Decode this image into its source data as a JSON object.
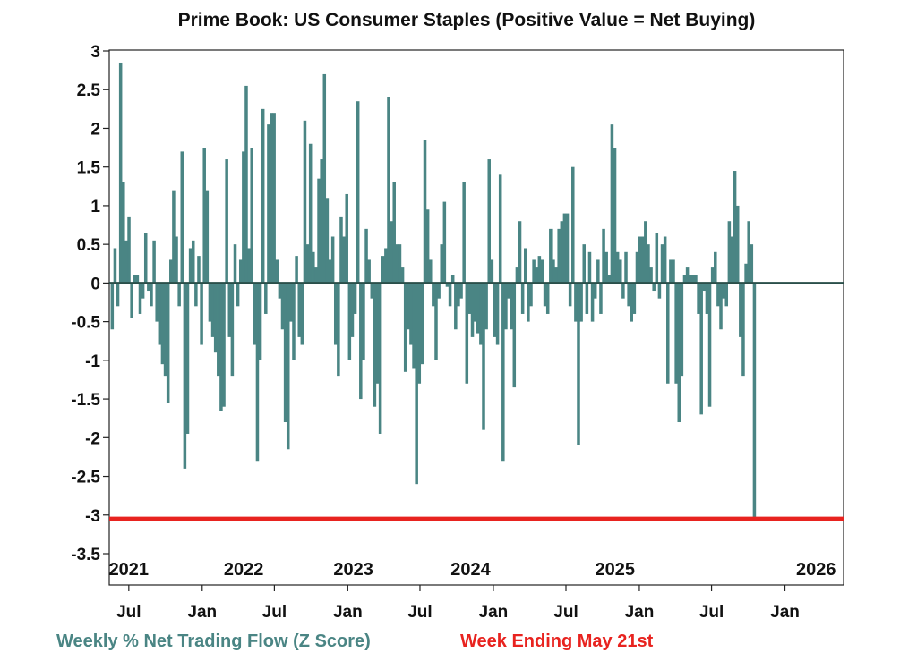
{
  "chart_data": {
    "type": "bar",
    "title": "Prime Book: US Consumer Staples (Positive Value = Net Buying)",
    "ylim": [
      -3.5,
      3
    ],
    "yticks": [
      "3",
      "2.5",
      "2",
      "1.5",
      "1",
      "0.5",
      "0",
      "-0.5",
      "-1",
      "-1.5",
      "-2",
      "-2.5",
      "-3",
      "-3.5"
    ],
    "ytick_values": [
      3,
      2.5,
      2,
      1.5,
      1,
      0.5,
      0,
      -0.5,
      -1,
      -1.5,
      -2,
      -2.5,
      -3,
      -3.5
    ],
    "x_start": "2021-05-13",
    "x_end": "2026-05-28",
    "grid": false,
    "year_labels": [
      {
        "label": "2021",
        "date": "2021-07-01"
      },
      {
        "label": "2022",
        "date": "2022-04-15"
      },
      {
        "label": "2023",
        "date": "2023-01-15"
      },
      {
        "label": "2024",
        "date": "2023-11-05"
      },
      {
        "label": "2025",
        "date": "2024-11-01"
      },
      {
        "label": "2026",
        "date": "2026-03-20"
      }
    ],
    "month_ticks": [
      {
        "label": "Jul",
        "date": "2021-07-01"
      },
      {
        "label": "Jan",
        "date": "2022-01-01"
      },
      {
        "label": "Jul",
        "date": "2022-07-01"
      },
      {
        "label": "Jan",
        "date": "2023-01-01"
      },
      {
        "label": "Jul",
        "date": "2023-07-01"
      },
      {
        "label": "Jan",
        "date": "2024-01-01"
      },
      {
        "label": "Jul",
        "date": "2024-07-01"
      },
      {
        "label": "Jan",
        "date": "2025-01-01"
      },
      {
        "label": "Jul",
        "date": "2025-07-01"
      },
      {
        "label": "Jan",
        "date": "2026-01-01"
      }
    ],
    "series": [
      {
        "name": "Weekly % Net Trading Flow (Z Score)",
        "color": "#4a8584",
        "first_week": "2021-05-20",
        "interval_days": 7,
        "values": [
          -0.6,
          0.45,
          -0.3,
          2.85,
          1.3,
          0.55,
          0.85,
          -0.45,
          0.1,
          0.1,
          -0.4,
          -0.2,
          0.65,
          -0.1,
          -0.3,
          0.55,
          -0.5,
          -0.8,
          -1.05,
          -1.2,
          -1.55,
          0.3,
          1.2,
          0.6,
          -0.3,
          1.7,
          -2.4,
          -1.95,
          0.45,
          0.55,
          -0.3,
          0.35,
          -0.8,
          1.75,
          1.2,
          -0.5,
          -0.7,
          -0.9,
          -1.2,
          -1.65,
          -1.6,
          1.6,
          -0.7,
          -1.2,
          0.5,
          -0.3,
          0.3,
          1.7,
          2.55,
          0.45,
          1.75,
          -0.8,
          -2.3,
          -1.0,
          2.25,
          -0.4,
          2.05,
          2.2,
          2.2,
          0.3,
          -0.2,
          -0.6,
          -1.8,
          -2.15,
          -0.5,
          -1.0,
          0.35,
          -0.7,
          -0.8,
          2.1,
          0.5,
          1.8,
          0.4,
          0.2,
          1.35,
          1.6,
          2.7,
          1.1,
          0.3,
          0.6,
          -0.8,
          -1.2,
          0.85,
          0.6,
          1.15,
          -1.0,
          -0.7,
          -0.4,
          2.35,
          -1.5,
          -1.0,
          0.7,
          0.3,
          -0.2,
          -1.6,
          -1.3,
          -1.95,
          0.35,
          0.45,
          2.4,
          0.8,
          1.3,
          0.5,
          0.5,
          0.2,
          -1.15,
          -0.6,
          -0.8,
          -1.1,
          -2.6,
          -1.3,
          -1.05,
          1.85,
          0.95,
          0.3,
          -0.3,
          -1.0,
          -0.2,
          0.5,
          1.05,
          -0.05,
          -0.3,
          0.1,
          -0.6,
          -0.3,
          -0.2,
          1.3,
          -1.3,
          -0.4,
          -0.7,
          -0.5,
          -0.65,
          -0.8,
          -1.9,
          -0.6,
          1.6,
          0.3,
          -0.7,
          -0.8,
          1.4,
          -2.3,
          -0.6,
          -0.2,
          -0.6,
          -1.35,
          0.2,
          0.8,
          -0.4,
          0.45,
          -0.5,
          -0.3,
          0.3,
          0.2,
          0.35,
          0.3,
          -0.3,
          -0.4,
          0.7,
          0.3,
          0.2,
          0.7,
          0.8,
          0.9,
          0.9,
          -0.3,
          1.5,
          -0.5,
          -2.1,
          -0.5,
          0.5,
          -0.4,
          0.4,
          -0.5,
          -0.2,
          0.3,
          -0.4,
          0.7,
          0.4,
          0.1,
          2.05,
          1.75,
          0.4,
          0.3,
          -0.2,
          0.4,
          -0.3,
          -0.5,
          -0.4,
          0.4,
          0.6,
          0.6,
          0.8,
          0.5,
          0.2,
          -0.1,
          0.65,
          -0.2,
          0.5,
          0.6,
          -1.3,
          0.3,
          0.3,
          -1.3,
          -1.8,
          -1.2,
          0.1,
          0.2,
          0.1,
          0.1,
          0.1,
          -0.4,
          -1.7,
          -0.1,
          -0.4,
          -1.6,
          0.2,
          0.4,
          -0.3,
          -0.6,
          -0.2,
          -0.3,
          0.8,
          0.6,
          1.45,
          1.0,
          -0.7,
          -1.2,
          0.25,
          0.8,
          0.5,
          -3.05
        ]
      }
    ],
    "highlight_value": -3.05,
    "highlight_color": "#e8231f",
    "zero_line_color": "#2a4f4a",
    "legend_placement": "bottom",
    "legend": [
      {
        "text": "Weekly % Net Trading Flow (Z Score)",
        "color": "#4a8584"
      },
      {
        "text": "Week Ending May 21st",
        "color": "#e8231f"
      }
    ]
  }
}
